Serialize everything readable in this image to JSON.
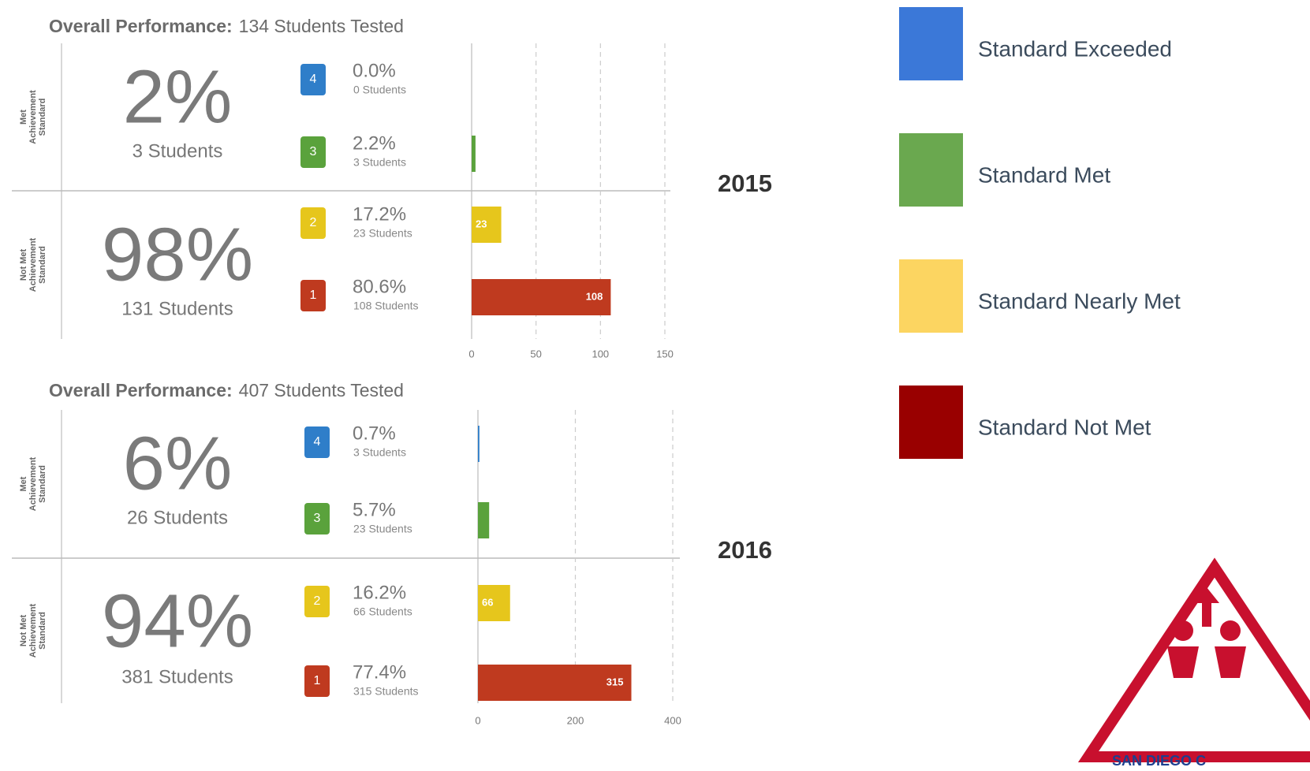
{
  "chart_data": [
    {
      "type": "bar",
      "title": "Overall Performance:",
      "subtitle": "134 Students Tested",
      "year": "2015",
      "groups": [
        {
          "side_label": [
            "Met",
            "Achievement",
            "Standard"
          ],
          "percent": "2%",
          "students": "3 Students"
        },
        {
          "side_label": [
            "Not Met",
            "Achievement",
            "Standard"
          ],
          "percent": "98%",
          "students": "131 Students"
        }
      ],
      "categories": [
        "4",
        "3",
        "2",
        "1"
      ],
      "percent_labels": [
        "0.0%",
        "2.2%",
        "17.2%",
        "80.6%"
      ],
      "student_labels": [
        "0 Students",
        "3 Students",
        "23 Students",
        "108 Students"
      ],
      "values": [
        0,
        3,
        23,
        108
      ],
      "value_labels": [
        null,
        null,
        "23",
        "108"
      ],
      "colors": [
        "#2f7ec9",
        "#5aa23c",
        "#e6c61c",
        "#bf3a1f"
      ],
      "xlim": [
        0,
        150
      ],
      "xticks": [
        0,
        50,
        100,
        150
      ],
      "grid": true
    },
    {
      "type": "bar",
      "title": "Overall Performance:",
      "subtitle": "407 Students Tested",
      "year": "2016",
      "groups": [
        {
          "side_label": [
            "Met",
            "Achievement",
            "Standard"
          ],
          "percent": "6%",
          "students": "26 Students"
        },
        {
          "side_label": [
            "Not Met",
            "Achievement",
            "Standard"
          ],
          "percent": "94%",
          "students": "381 Students"
        }
      ],
      "categories": [
        "4",
        "3",
        "2",
        "1"
      ],
      "percent_labels": [
        "0.7%",
        "5.7%",
        "16.2%",
        "77.4%"
      ],
      "student_labels": [
        "3 Students",
        "23 Students",
        "66 Students",
        "315 Students"
      ],
      "values": [
        3,
        23,
        66,
        315
      ],
      "value_labels": [
        null,
        null,
        "66",
        "315"
      ],
      "colors": [
        "#2f7ec9",
        "#5aa23c",
        "#e6c61c",
        "#bf3a1f"
      ],
      "xlim": [
        0,
        400
      ],
      "xticks": [
        0,
        200,
        400
      ],
      "grid": true
    }
  ],
  "legend": [
    {
      "name": "Standard Exceeded",
      "color": "#3b78d8"
    },
    {
      "name": "Standard Met",
      "color": "#6aa84f"
    },
    {
      "name": "Standard Nearly Met",
      "color": "#fcd561"
    },
    {
      "name": "Standard Not Met",
      "color": "#990000"
    }
  ],
  "logo": {
    "text": "SAN DIEGO C"
  }
}
